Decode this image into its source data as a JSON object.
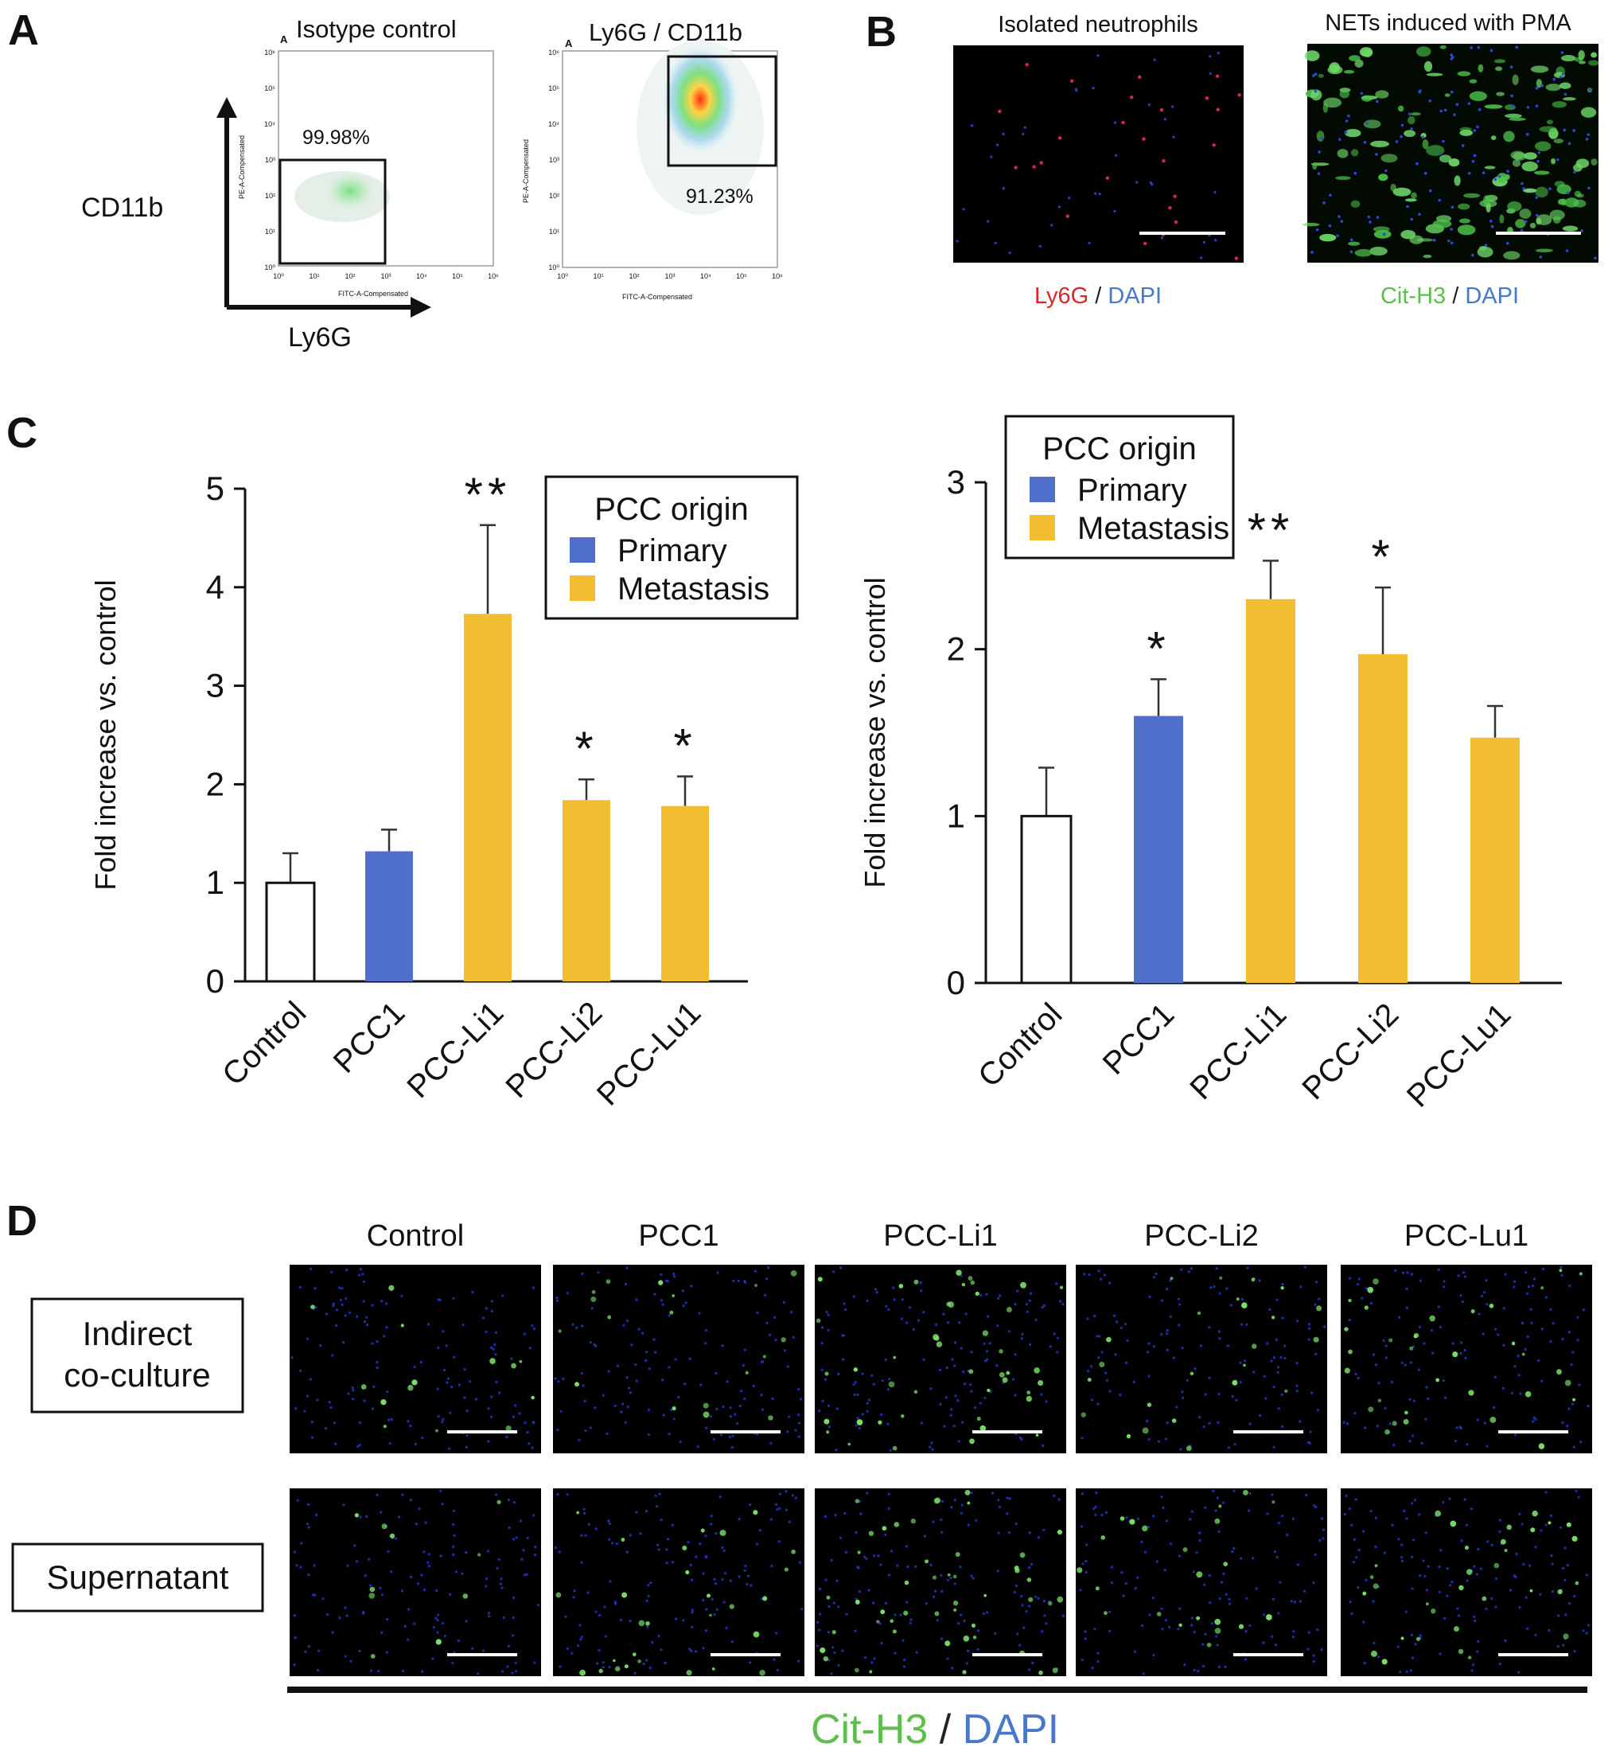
{
  "panel_labels": [
    "A",
    "B",
    "C",
    "D"
  ],
  "panel_a": {
    "axis_y_label": "CD11b",
    "axis_x_label": "Ly6G",
    "plots": [
      {
        "title": "Isotype control",
        "corner": "A",
        "gate_percent": "99.98%",
        "ylabel": "PE-A-Compensated",
        "xlabel": "FITC-A-Compensated",
        "ticks": [
          "10⁰",
          "10¹",
          "10²",
          "10³",
          "10⁴",
          "10⁵",
          "10⁶"
        ]
      },
      {
        "title": "Ly6G / CD11b",
        "corner": "A",
        "gate_percent": "91.23%",
        "ylabel": "PE-A-Compensated",
        "xlabel": "FITC-A-Compensated",
        "ticks": [
          "10⁰",
          "10¹",
          "10²",
          "10³",
          "10⁴",
          "10⁵",
          "10⁶"
        ]
      }
    ]
  },
  "panel_b": {
    "images": [
      {
        "title": "Isolated neutrophils",
        "stain": "Ly6G",
        "sep": " / ",
        "counter": "DAPI"
      },
      {
        "title": "NETs induced with PMA",
        "stain": "Cit-H3",
        "sep": " / ",
        "counter": "DAPI"
      }
    ]
  },
  "colors": {
    "primary": "#4f6fcb",
    "metastasis": "#f1be32",
    "control": "#ffffff",
    "red_stain": "#e0242b",
    "green_stain": "#5cbf4b",
    "blue_stain": "#4a78c9"
  },
  "chart_data": [
    {
      "type": "bar",
      "categories": [
        "Control",
        "PCC1",
        "PCC-Li1",
        "PCC-Li2",
        "PCC-Lu1"
      ],
      "values": [
        1.0,
        1.32,
        3.73,
        1.84,
        1.78
      ],
      "errors": [
        0.3,
        0.22,
        0.9,
        0.21,
        0.3
      ],
      "significance": [
        "",
        "",
        "**",
        "*",
        "*"
      ],
      "groups": [
        "control",
        "primary",
        "metastasis",
        "metastasis",
        "metastasis"
      ],
      "ylabel": "Fold increase vs. control",
      "ylim": [
        0,
        5
      ],
      "yticks": [
        "0",
        "1",
        "2",
        "3",
        "4",
        "5"
      ],
      "legend": {
        "title": "PCC origin",
        "entries": [
          "Primary",
          "Metastasis"
        ],
        "placement": "top-right"
      }
    },
    {
      "type": "bar",
      "categories": [
        "Control",
        "PCC1",
        "PCC-Li1",
        "PCC-Li2",
        "PCC-Lu1"
      ],
      "values": [
        1.0,
        1.6,
        2.3,
        1.97,
        1.47
      ],
      "errors": [
        0.29,
        0.22,
        0.23,
        0.4,
        0.19
      ],
      "significance": [
        "",
        "*",
        "**",
        "*",
        ""
      ],
      "groups": [
        "control",
        "primary",
        "metastasis",
        "metastasis",
        "metastasis"
      ],
      "ylabel": "Fold increase vs. control",
      "ylim": [
        0,
        3
      ],
      "yticks": [
        "0",
        "1",
        "2",
        "3"
      ],
      "legend": {
        "title": "PCC origin",
        "entries": [
          "Primary",
          "Metastasis"
        ],
        "placement": "top-left"
      }
    }
  ],
  "panel_d": {
    "columns": [
      "Control",
      "PCC1",
      "PCC-Li1",
      "PCC-Li2",
      "PCC-Lu1"
    ],
    "rows": [
      "Indirect co-culture",
      "Supernatant"
    ],
    "row_label_lines": [
      [
        "Indirect",
        "co-culture"
      ],
      [
        "Supernatant"
      ]
    ],
    "footer": {
      "stain": "Cit-H3",
      "sep": " / ",
      "counter": "DAPI"
    },
    "green_density": [
      [
        0.18,
        0.22,
        0.55,
        0.3,
        0.42
      ],
      [
        0.12,
        0.35,
        0.6,
        0.28,
        0.4
      ]
    ]
  }
}
